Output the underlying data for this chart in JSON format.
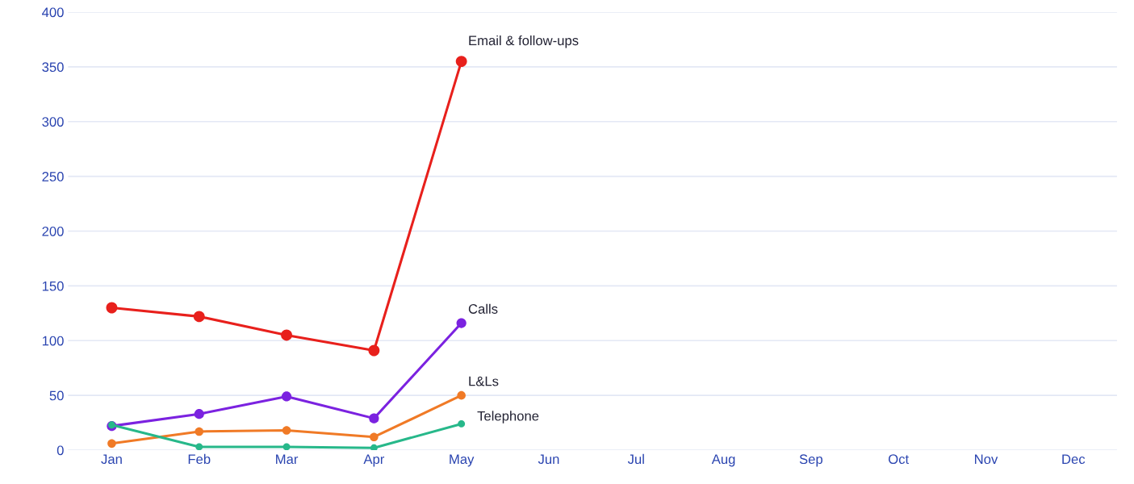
{
  "chart_data": {
    "type": "line",
    "categories": [
      "Jan",
      "Feb",
      "Mar",
      "Apr",
      "May",
      "Jun",
      "Jul",
      "Aug",
      "Sep",
      "Oct",
      "Nov",
      "Dec"
    ],
    "series": [
      {
        "name": "Email & follow-ups",
        "color": "#e8201c",
        "values": [
          130,
          122,
          105,
          91,
          355,
          null,
          null,
          null,
          null,
          null,
          null,
          null
        ]
      },
      {
        "name": "Calls",
        "color": "#7b22e0",
        "values": [
          22,
          33,
          49,
          29,
          116,
          null,
          null,
          null,
          null,
          null,
          null,
          null
        ]
      },
      {
        "name": "L&Ls",
        "color": "#f07a26",
        "values": [
          6,
          17,
          18,
          12,
          50,
          null,
          null,
          null,
          null,
          null,
          null,
          null
        ]
      },
      {
        "name": "Telephone",
        "color": "#27b88a",
        "values": [
          23,
          3,
          3,
          2,
          24,
          null,
          null,
          null,
          null,
          null,
          null,
          null
        ]
      }
    ],
    "ylim": [
      0,
      400
    ],
    "yticks": [
      0,
      50,
      100,
      150,
      200,
      250,
      300,
      350,
      400
    ],
    "grid": "y",
    "marker": "circle",
    "line_style": "solid",
    "legend": false
  }
}
